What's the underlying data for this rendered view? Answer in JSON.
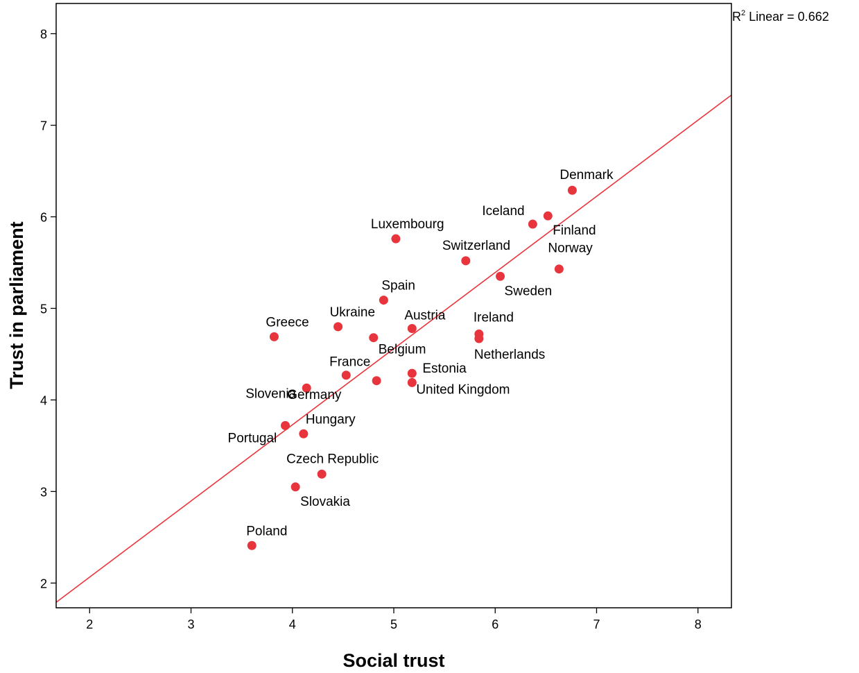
{
  "chart_data": {
    "type": "scatter",
    "title": "",
    "xlabel": "Social trust",
    "ylabel": "Trust in parliament",
    "xlim": [
      1.67,
      8.33
    ],
    "ylim": [
      1.73,
      8.33
    ],
    "xticks": [
      2,
      3,
      4,
      5,
      6,
      7,
      8
    ],
    "yticks": [
      2,
      3,
      4,
      5,
      6,
      7,
      8
    ],
    "grid": false,
    "point_color": "#e8343c",
    "line_color": "#e8343c",
    "fit_line": {
      "type": "linear",
      "label_prefix": "R",
      "label_sup": "2",
      "label_rest": " Linear = 0.662",
      "start": [
        1.67,
        1.79
      ],
      "end": [
        8.33,
        7.33
      ]
    },
    "points": [
      {
        "label": "Denmark",
        "x": 6.76,
        "y": 6.29
      },
      {
        "label": "Iceland",
        "x": 6.37,
        "y": 5.92
      },
      {
        "label": "Finland",
        "x": 6.52,
        "y": 6.01
      },
      {
        "label": "Norway",
        "x": 6.63,
        "y": 5.43
      },
      {
        "label": "Sweden",
        "x": 6.05,
        "y": 5.35
      },
      {
        "label": "Switzerland",
        "x": 5.71,
        "y": 5.52
      },
      {
        "label": "Luxembourg",
        "x": 5.02,
        "y": 5.76
      },
      {
        "label": "Spain",
        "x": 4.9,
        "y": 5.09
      },
      {
        "label": "Ukraine",
        "x": 4.45,
        "y": 4.8
      },
      {
        "label": "Greece",
        "x": 3.82,
        "y": 4.69
      },
      {
        "label": "Austria",
        "x": 5.18,
        "y": 4.78
      },
      {
        "label": "Belgium",
        "x": 4.8,
        "y": 4.68
      },
      {
        "label": "Ireland",
        "x": 5.84,
        "y": 4.72
      },
      {
        "label": "Netherlands",
        "x": 5.84,
        "y": 4.67
      },
      {
        "label": "France",
        "x": 4.83,
        "y": 4.21
      },
      {
        "label": "Estonia",
        "x": 5.18,
        "y": 4.29
      },
      {
        "label": "United Kingdom",
        "x": 5.18,
        "y": 4.19
      },
      {
        "label": "Germany",
        "x": 4.53,
        "y": 4.27
      },
      {
        "label": "Slovenia",
        "x": 4.14,
        "y": 4.13
      },
      {
        "label": "Hungary",
        "x": 4.11,
        "y": 3.63
      },
      {
        "label": "Portugal",
        "x": 3.93,
        "y": 3.72
      },
      {
        "label": "Czech Republic",
        "x": 4.29,
        "y": 3.19
      },
      {
        "label": "Slovakia",
        "x": 4.03,
        "y": 3.05
      },
      {
        "label": "Poland",
        "x": 3.6,
        "y": 2.41
      }
    ]
  }
}
